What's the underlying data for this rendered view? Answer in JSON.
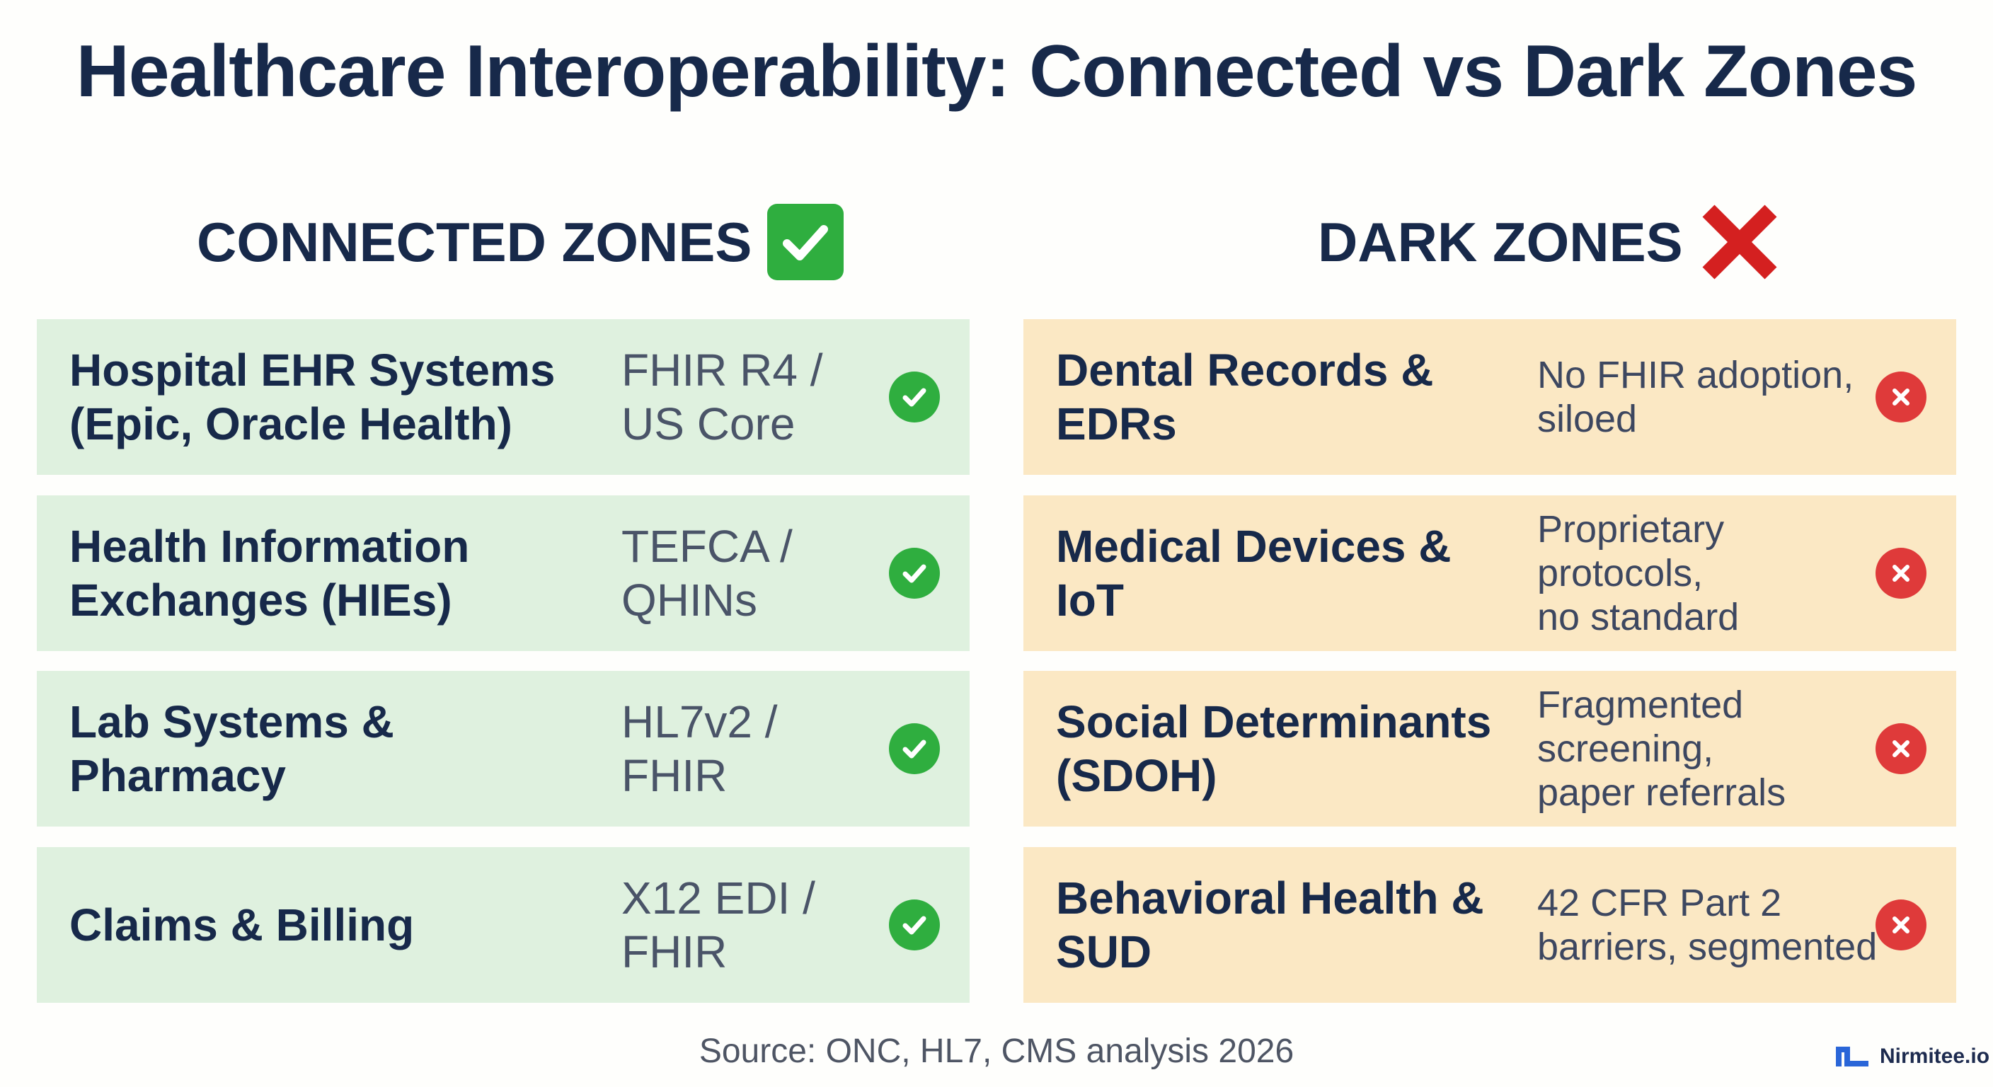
{
  "title": "Healthcare Interoperability: Connected vs Dark Zones",
  "connected": {
    "heading": "CONNECTED ZONES",
    "heading_icon": "green-check-box-icon",
    "accent_color": "#2fae3f",
    "card_color": "#dff1df",
    "items": [
      {
        "name": "Hospital EHR Systems\n(Epic, Oracle Health)",
        "detail": "FHIR R4 /\nUS Core"
      },
      {
        "name": "Health Information\nExchanges (HIEs)",
        "detail": "TEFCA /\nQHINs"
      },
      {
        "name": "Lab Systems &\nPharmacy",
        "detail": "HL7v2 /\nFHIR"
      },
      {
        "name": "Claims & Billing",
        "detail": "X12 EDI /\nFHIR"
      }
    ]
  },
  "dark": {
    "heading": "DARK ZONES",
    "heading_icon": "red-cross-icon",
    "accent_color": "#df3a3a",
    "card_color": "#fbe8c4",
    "items": [
      {
        "name": "Dental Records &\nEDRs",
        "detail": "No FHIR adoption,\nsiloed"
      },
      {
        "name": "Medical Devices &\nIoT",
        "detail": "Proprietary\nprotocols,\nno standard"
      },
      {
        "name": "Social Determinants\n(SDOH)",
        "detail": "Fragmented\nscreening,\npaper referrals"
      },
      {
        "name": "Behavioral Health &\nSUD",
        "detail": "42 CFR Part 2\nbarriers, segmented"
      }
    ]
  },
  "source": "Source: ONC, HL7, CMS analysis 2026",
  "brand": {
    "name": "Nirmitee.io",
    "logo_icon": "nirmitee-logo-icon"
  }
}
